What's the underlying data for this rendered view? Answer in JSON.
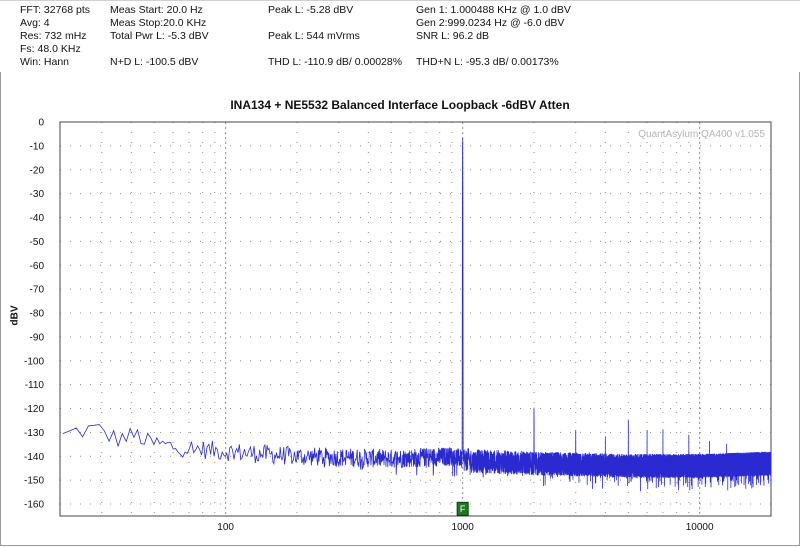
{
  "readouts": {
    "fft": "FFT: 32768 pts",
    "avg": "Avg: 4",
    "res": "Res: 732 mHz",
    "fs": "Fs: 48.0 KHz",
    "win": "Win: Hann",
    "meas_start": "Meas Start: 20.0 Hz",
    "meas_stop": "Meas Stop:20.0 KHz",
    "total_pwr": "Total Pwr L: -5.3 dBV",
    "nd": "N+D L: -100.5 dBV",
    "peak_l_dbv": "Peak L: -5.28 dBV",
    "peak_l_mv": "Peak L: 544 mVrms",
    "thd": "THD L: -110.9 dB/ 0.00028%",
    "gen1": "Gen 1: 1.000488 KHz @ 1.0  dBV",
    "gen2": "Gen 2:999.0234 Hz @ -6.0  dBV",
    "snr": "SNR L: 96.2 dB",
    "thdn": "THD+N L: -95.3 dB/ 0.00173%"
  },
  "watermark": "QuantAsylum QA400 v1.055",
  "marker_label": "F",
  "colors": {
    "trace": "#2a2ad0",
    "grid": "#8c8c8c",
    "marker": "#1f7a1f"
  },
  "chart_data": {
    "type": "line",
    "title": "INA134 + NE5532 Balanced Interface Loopback -6dBV Atten",
    "xlabel": "",
    "ylabel": "dBV",
    "x_scale": "log",
    "xlim": [
      20,
      20000
    ],
    "ylim": [
      -165,
      0
    ],
    "grid": true,
    "y_ticks": [
      0,
      -10,
      -20,
      -30,
      -40,
      -50,
      -60,
      -70,
      -80,
      -90,
      -100,
      -110,
      -120,
      -130,
      -140,
      -150,
      -160
    ],
    "x_tick_labels": [
      {
        "x": 100,
        "label": "100"
      },
      {
        "x": 1000,
        "label": "1000"
      },
      {
        "x": 10000,
        "label": "10000"
      }
    ],
    "marker": {
      "x": 1000,
      "y": -162,
      "label": "F"
    },
    "series": [
      {
        "name": "",
        "noise_floor": [
          [
            20,
            -133
          ],
          [
            25,
            -131
          ],
          [
            30,
            -128
          ],
          [
            35,
            -131
          ],
          [
            40,
            -133
          ],
          [
            60,
            -136
          ],
          [
            100,
            -138
          ],
          [
            200,
            -140
          ],
          [
            500,
            -141
          ],
          [
            900,
            -140
          ],
          [
            1100,
            -142
          ],
          [
            2000,
            -143
          ],
          [
            5000,
            -144
          ],
          [
            10000,
            -144
          ],
          [
            20000,
            -143
          ]
        ],
        "peaks": [
          {
            "x": 1000,
            "y": -5.3
          },
          {
            "x": 2000,
            "y": -119
          },
          {
            "x": 3000,
            "y": -129
          },
          {
            "x": 4000,
            "y": -131
          },
          {
            "x": 5000,
            "y": -124
          },
          {
            "x": 6000,
            "y": -129
          },
          {
            "x": 7000,
            "y": -128
          },
          {
            "x": 9000,
            "y": -131
          },
          {
            "x": 11000,
            "y": -133
          },
          {
            "x": 13000,
            "y": -134
          }
        ]
      }
    ]
  }
}
